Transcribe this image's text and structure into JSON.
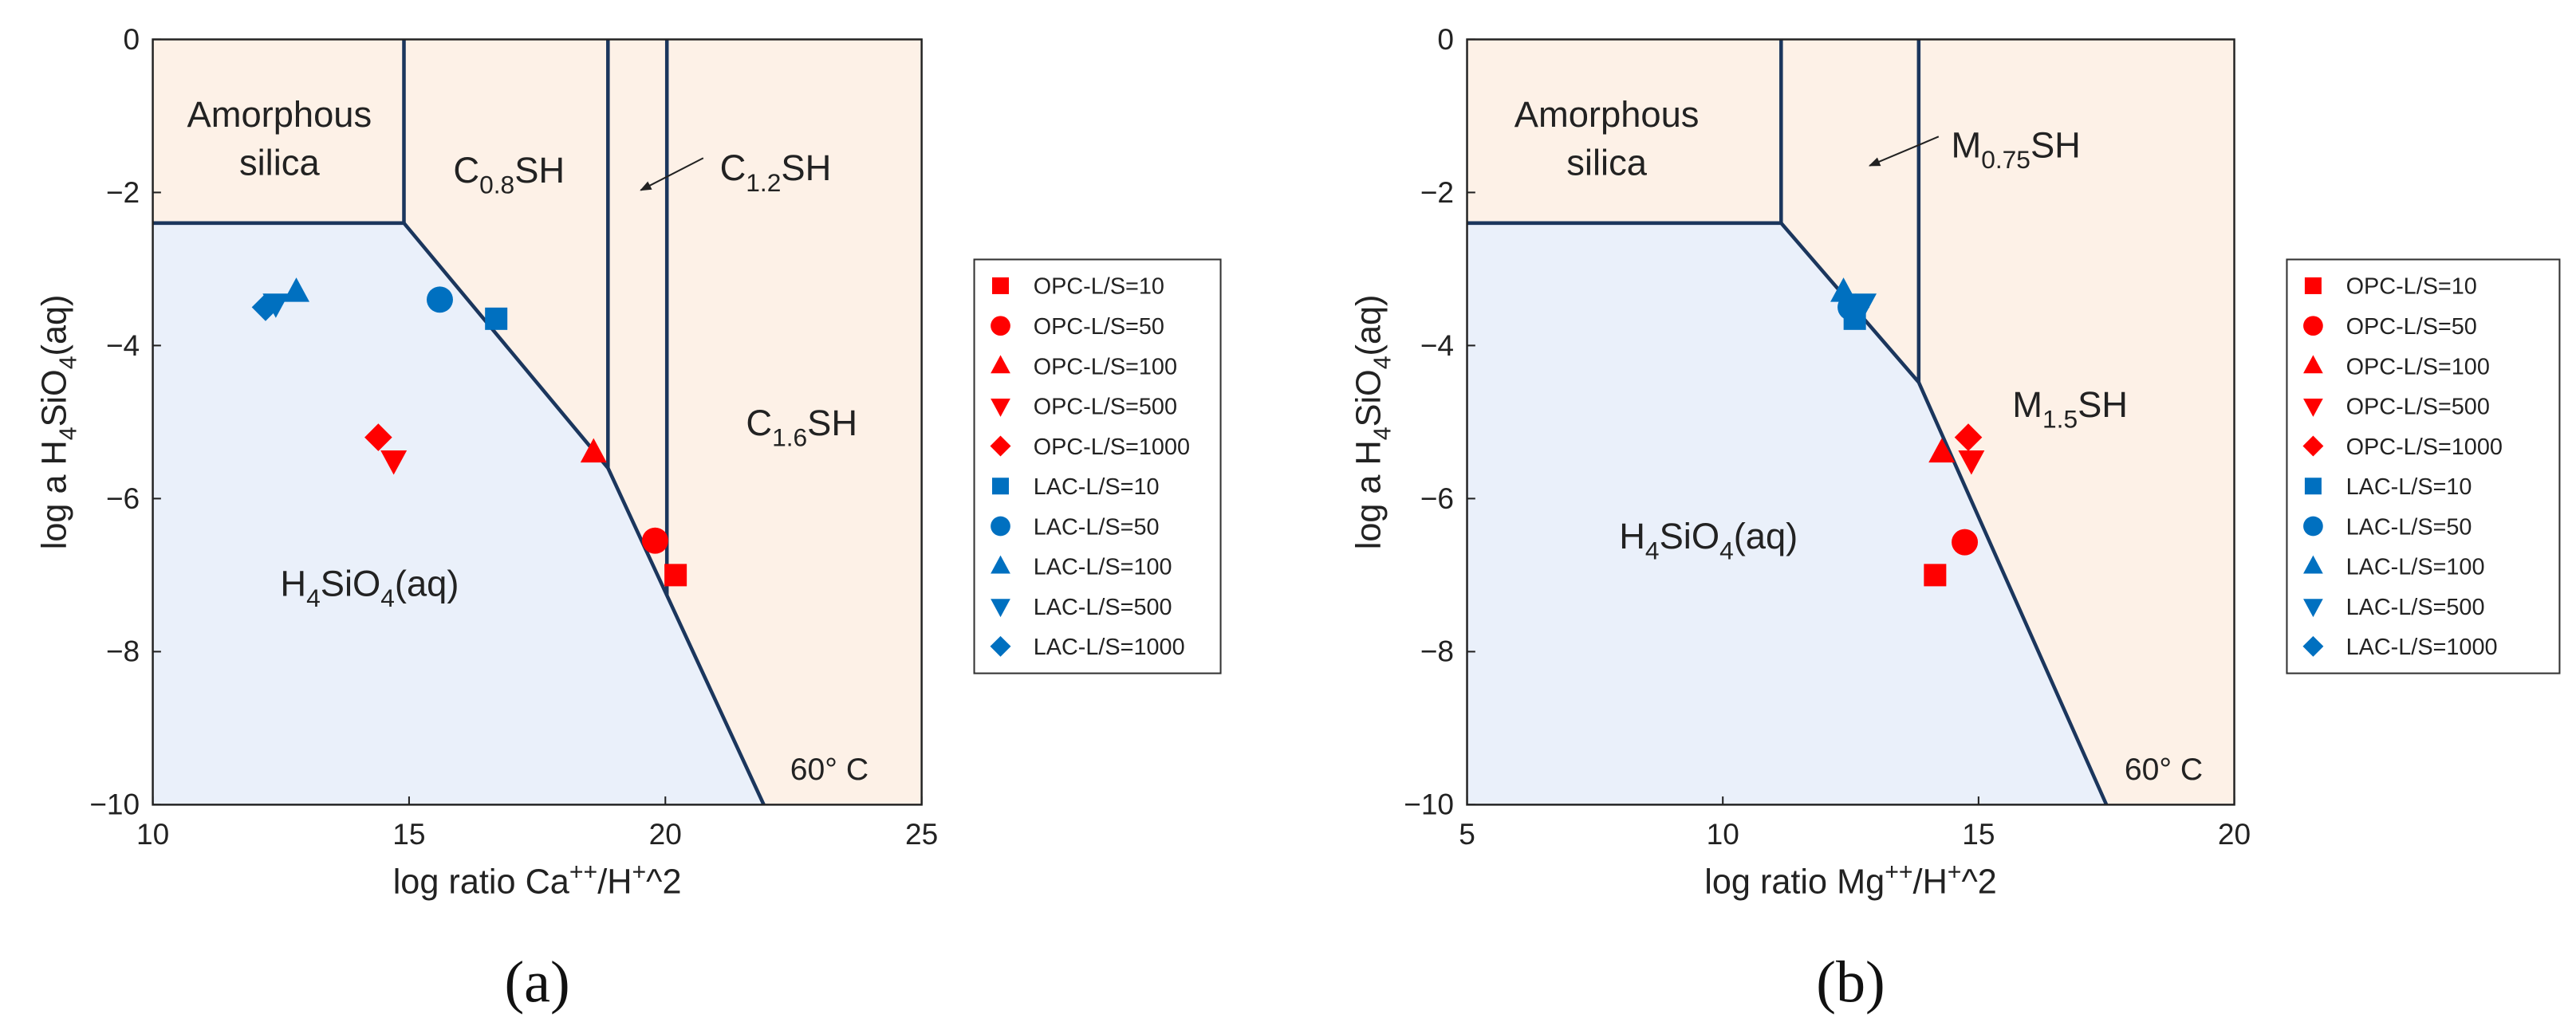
{
  "chart_data": [
    {
      "type": "scatter",
      "caption": "(a)",
      "xlabel": {
        "text": [
          "log ratio Ca",
          "++",
          "/H",
          "+",
          "^2"
        ],
        "script": "sup"
      },
      "ylabel": {
        "text": [
          "log a H",
          "4",
          "SiO",
          "4",
          "(aq)"
        ],
        "script": "sub"
      },
      "xlim": [
        10,
        25
      ],
      "xticks": [
        10,
        15,
        20,
        25
      ],
      "ylim": [
        -10,
        0
      ],
      "yticks": [
        {
          "value": -10,
          "label": "−10"
        },
        {
          "value": -8,
          "label": "−8"
        },
        {
          "value": -6,
          "label": "−6"
        },
        {
          "value": -4,
          "label": "−4"
        },
        {
          "value": -2,
          "label": "−2"
        },
        0
      ],
      "boundary_color": "#1b365d",
      "regions": [
        {
          "color": "#fdf1e7",
          "points": [
            [
              10,
              -2.4
            ],
            [
              10,
              0
            ],
            [
              25,
              0
            ],
            [
              25,
              -10
            ],
            [
              21.92,
              -10
            ],
            [
              18.88,
              -5.6
            ],
            [
              14.9,
              -2.4
            ]
          ]
        },
        {
          "color": "#eaf0fa",
          "points": [
            [
              10,
              -2.4
            ],
            [
              14.9,
              -2.4
            ],
            [
              18.88,
              -5.6
            ],
            [
              21.92,
              -10
            ],
            [
              10,
              -10
            ]
          ]
        }
      ],
      "boundaries": [
        [
          [
            10,
            -2.4
          ],
          [
            14.9,
            -2.4
          ],
          [
            18.88,
            -5.6
          ],
          [
            21.92,
            -10
          ]
        ],
        [
          [
            14.9,
            -2.4
          ],
          [
            14.9,
            0
          ]
        ],
        [
          [
            18.88,
            -5.6
          ],
          [
            18.88,
            0
          ]
        ],
        [
          [
            20.03,
            -7.27
          ],
          [
            20.03,
            0
          ]
        ]
      ],
      "annotations": [
        {
          "text": [
            "Amorphous"
          ]
        },
        {
          "text": [
            "silica"
          ]
        },
        {
          "text": [
            "C",
            "0.8",
            "SH"
          ],
          "script": "sub"
        },
        {
          "text": [
            "C",
            "1.2",
            "SH"
          ],
          "script": "sub"
        },
        {
          "text": [
            "C",
            "1.6",
            "SH"
          ],
          "script": "sub"
        },
        {
          "text": [
            "H",
            "4",
            "SiO",
            "4",
            "(aq)"
          ],
          "script": "sub"
        },
        {
          "text": [
            "60° C"
          ]
        }
      ],
      "series": [
        {
          "name": "OPC-L/S=10",
          "color": "#ff0000",
          "marker": "square",
          "x": [
            20.2
          ],
          "values": [
            -7.0
          ]
        },
        {
          "name": "OPC-L/S=50",
          "color": "#ff0000",
          "marker": "circle",
          "x": [
            19.8
          ],
          "values": [
            -6.55
          ]
        },
        {
          "name": "OPC-L/S=100",
          "color": "#ff0000",
          "marker": "triangle",
          "x": [
            18.6
          ],
          "values": [
            -5.4
          ]
        },
        {
          "name": "OPC-L/S=500",
          "color": "#ff0000",
          "marker": "triangle-down",
          "x": [
            14.7
          ],
          "values": [
            -5.5
          ]
        },
        {
          "name": "OPC-L/S=1000",
          "color": "#ff0000",
          "marker": "diamond",
          "x": [
            14.4
          ],
          "values": [
            -5.2
          ]
        },
        {
          "name": "LAC-L/S=10",
          "color": "#0070c0",
          "marker": "square",
          "x": [
            16.7
          ],
          "values": [
            -3.65
          ]
        },
        {
          "name": "LAC-L/S=50",
          "color": "#0070c0",
          "marker": "circle",
          "x": [
            15.6
          ],
          "values": [
            -3.4
          ]
        },
        {
          "name": "LAC-L/S=100",
          "color": "#0070c0",
          "marker": "triangle",
          "x": [
            12.8
          ],
          "values": [
            -3.3
          ]
        },
        {
          "name": "LAC-L/S=500",
          "color": "#0070c0",
          "marker": "triangle-down",
          "x": [
            12.4
          ],
          "values": [
            -3.45
          ]
        },
        {
          "name": "LAC-L/S=1000",
          "color": "#0070c0",
          "marker": "diamond",
          "x": [
            12.2
          ],
          "values": [
            -3.5
          ]
        }
      ]
    },
    {
      "type": "scatter",
      "caption": "(b)",
      "xlabel": {
        "text": [
          "log ratio Mg",
          "++",
          "/H",
          "+",
          "^2"
        ],
        "script": "sup"
      },
      "ylabel": {
        "text": [
          "log a H",
          "4",
          "SiO",
          "4",
          "(aq)"
        ],
        "script": "sub"
      },
      "xlim": [
        5,
        20
      ],
      "xticks": [
        5,
        10,
        15,
        20
      ],
      "ylim": [
        -10,
        0
      ],
      "yticks": [
        {
          "value": -10,
          "label": "−10"
        },
        {
          "value": -8,
          "label": "−8"
        },
        {
          "value": -6,
          "label": "−6"
        },
        {
          "value": -4,
          "label": "−4"
        },
        {
          "value": -2,
          "label": "−2"
        },
        0
      ],
      "boundary_color": "#1b365d",
      "regions": [
        {
          "color": "#fdf1e7",
          "points": [
            [
              5,
              -2.4
            ],
            [
              5,
              0
            ],
            [
              20,
              0
            ],
            [
              20,
              -10
            ],
            [
              17.5,
              -10
            ],
            [
              13.83,
              -4.48
            ],
            [
              11.14,
              -2.4
            ]
          ]
        },
        {
          "color": "#eaf0fa",
          "points": [
            [
              5,
              -2.4
            ],
            [
              11.14,
              -2.4
            ],
            [
              13.83,
              -4.48
            ],
            [
              17.5,
              -10
            ],
            [
              5,
              -10
            ]
          ]
        }
      ],
      "boundaries": [
        [
          [
            5,
            -2.4
          ],
          [
            11.14,
            -2.4
          ],
          [
            13.83,
            -4.48
          ],
          [
            17.5,
            -10
          ]
        ],
        [
          [
            11.14,
            -2.4
          ],
          [
            11.14,
            0
          ]
        ],
        [
          [
            13.83,
            -4.48
          ],
          [
            13.83,
            0
          ]
        ]
      ],
      "annotations": [
        {
          "text": [
            "Amorphous"
          ]
        },
        {
          "text": [
            "silica"
          ]
        },
        {
          "text": [
            "M",
            "0.75",
            "SH"
          ],
          "script": "sub"
        },
        {
          "text": [
            "M",
            "1.5",
            "SH"
          ],
          "script": "sub"
        },
        {
          "text": [
            "H",
            "4",
            "SiO",
            "4",
            "(aq)"
          ],
          "script": "sub"
        },
        {
          "text": [
            "60° C"
          ]
        }
      ],
      "series": [
        {
          "name": "OPC-L/S=10",
          "color": "#ff0000",
          "marker": "square",
          "x": [
            14.15
          ],
          "values": [
            -7.0
          ]
        },
        {
          "name": "OPC-L/S=50",
          "color": "#ff0000",
          "marker": "circle",
          "x": [
            14.73
          ],
          "values": [
            -6.57
          ]
        },
        {
          "name": "OPC-L/S=100",
          "color": "#ff0000",
          "marker": "triangle",
          "x": [
            14.28
          ],
          "values": [
            -5.4
          ]
        },
        {
          "name": "OPC-L/S=500",
          "color": "#ff0000",
          "marker": "triangle-down",
          "x": [
            14.86
          ],
          "values": [
            -5.5
          ]
        },
        {
          "name": "OPC-L/S=1000",
          "color": "#ff0000",
          "marker": "diamond",
          "x": [
            14.8
          ],
          "values": [
            -5.2
          ]
        },
        {
          "name": "LAC-L/S=10",
          "color": "#0070c0",
          "marker": "square",
          "x": [
            12.58
          ],
          "values": [
            -3.65
          ]
        },
        {
          "name": "LAC-L/S=50",
          "color": "#0070c0",
          "marker": "circle",
          "x": [
            12.5
          ],
          "values": [
            -3.5
          ]
        },
        {
          "name": "LAC-L/S=100",
          "color": "#0070c0",
          "marker": "triangle",
          "x": [
            12.36
          ],
          "values": [
            -3.3
          ]
        },
        {
          "name": "LAC-L/S=500",
          "color": "#0070c0",
          "marker": "triangle-down",
          "x": [
            12.75
          ],
          "values": [
            -3.45
          ]
        },
        {
          "name": "LAC-L/S=1000",
          "color": "#0070c0",
          "marker": "diamond",
          "x": [
            12.6
          ],
          "values": [
            -3.5
          ]
        }
      ]
    }
  ]
}
